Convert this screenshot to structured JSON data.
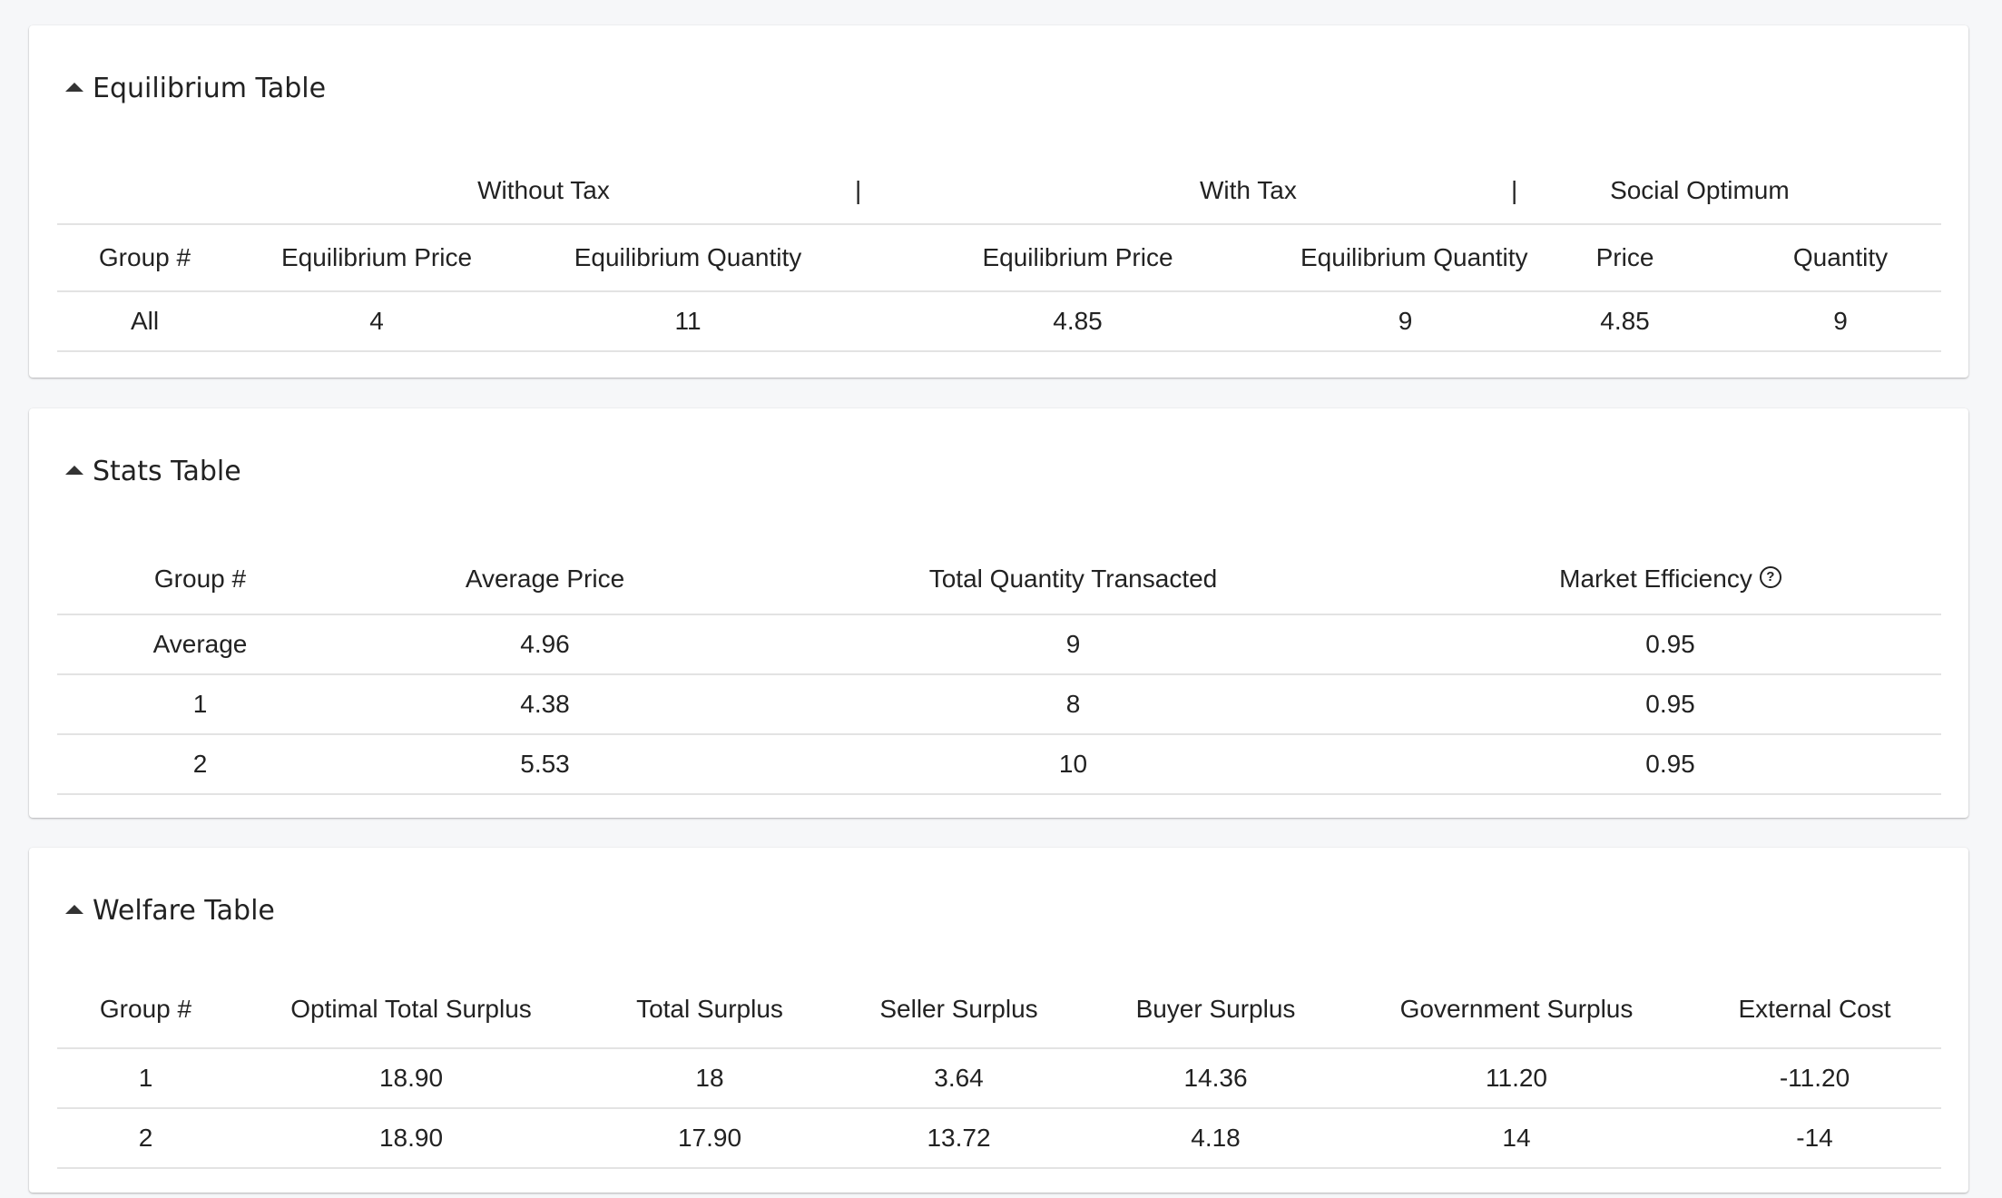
{
  "equilibrium": {
    "title": "Equilibrium Table",
    "groups": [
      "Without Tax",
      "|",
      "With Tax",
      "|",
      "Social Optimum"
    ],
    "headers": [
      "Group #",
      "Equilibrium Price",
      "Equilibrium Quantity",
      "Equilibrium Price",
      "Equilibrium Quantity",
      "Price",
      "Quantity"
    ],
    "rows": [
      [
        "All",
        "4",
        "11",
        "4.85",
        "9",
        "4.85",
        "9"
      ]
    ]
  },
  "stats": {
    "title": "Stats Table",
    "headers": [
      "Group #",
      "Average Price",
      "Total Quantity Transacted",
      "Market Efficiency"
    ],
    "help_icon": "?",
    "rows": [
      [
        "Average",
        "4.96",
        "9",
        "0.95"
      ],
      [
        "1",
        "4.38",
        "8",
        "0.95"
      ],
      [
        "2",
        "5.53",
        "10",
        "0.95"
      ]
    ]
  },
  "welfare": {
    "title": "Welfare Table",
    "headers": [
      "Group #",
      "Optimal Total Surplus",
      "Total Surplus",
      "Seller Surplus",
      "Buyer Surplus",
      "Government Surplus",
      "External Cost"
    ],
    "rows": [
      [
        "1",
        "18.90",
        "18",
        "3.64",
        "14.36",
        "11.20",
        "-11.20"
      ],
      [
        "2",
        "18.90",
        "17.90",
        "13.72",
        "4.18",
        "14",
        "-14"
      ]
    ]
  }
}
